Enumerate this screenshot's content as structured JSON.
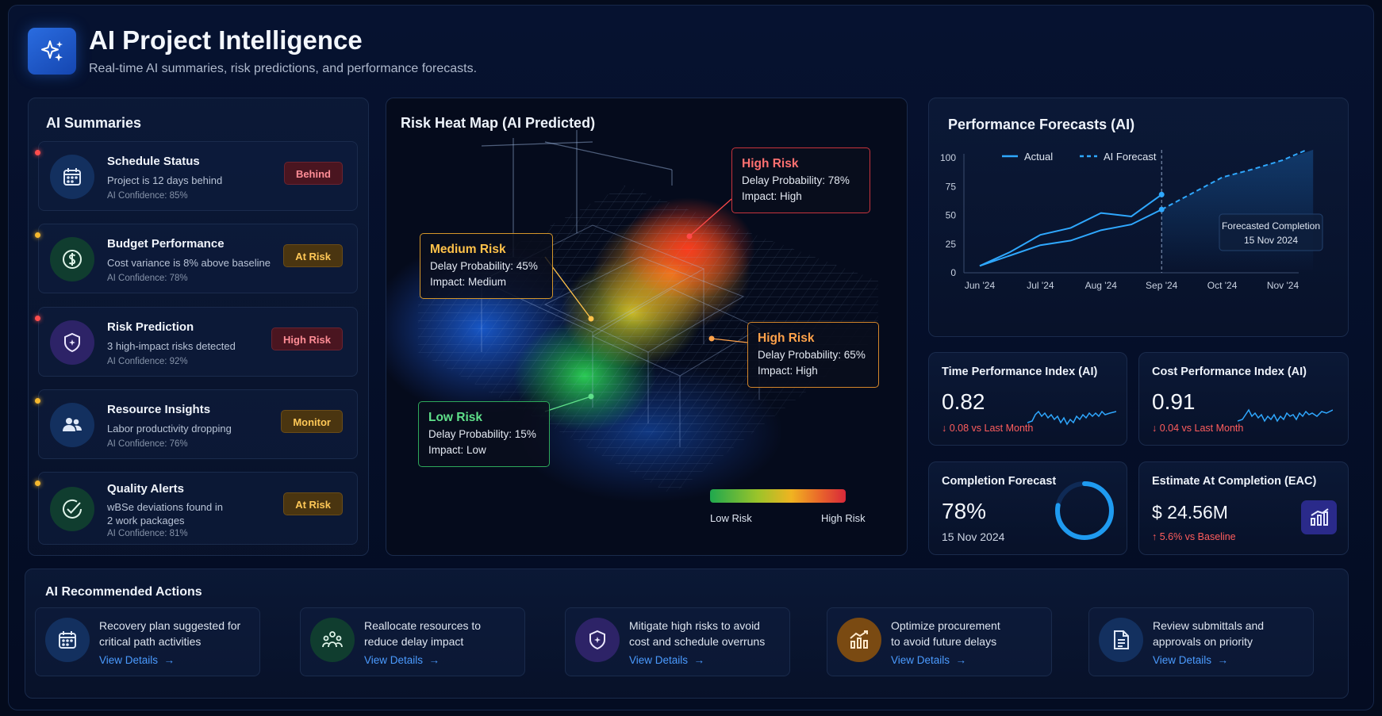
{
  "header": {
    "title": "AI Project Intelligence",
    "subtitle": "Real-time AI summaries, risk predictions, and performance forecasts."
  },
  "summaries": {
    "title": "AI Summaries",
    "items": [
      {
        "title": "Schedule Status",
        "desc": "Project is 12 days behind",
        "confidence": "AI Confidence: 85%",
        "badge": "Behind",
        "icon": "calendar-icon",
        "dot_color": "#ff4d4d"
      },
      {
        "title": "Budget Performance",
        "desc": "Cost variance is 8% above baseline",
        "confidence": "AI Confidence: 78%",
        "badge": "At Risk",
        "icon": "dollar-icon",
        "dot_color": "#f5b82e"
      },
      {
        "title": "Risk Prediction",
        "desc": "3 high-impact risks detected",
        "confidence": "AI Confidence: 92%",
        "badge": "High Risk",
        "icon": "shield-icon",
        "dot_color": "#ff4d4d"
      },
      {
        "title": "Resource Insights",
        "desc": "Labor productivity dropping",
        "confidence": "AI Confidence: 76%",
        "badge": "Monitor",
        "icon": "people-icon",
        "dot_color": "#f5b82e"
      },
      {
        "title": "Quality Alerts",
        "desc": "wBSe deviations found in",
        "desc2": "2 work packages",
        "confidence": "AI Confidence: 81%",
        "badge": "At Risk",
        "icon": "check-circle-icon",
        "dot_color": "#f5b82e"
      }
    ]
  },
  "heatmap": {
    "title": "Risk Heat Map (AI Predicted)",
    "boxes": [
      {
        "title": "High Risk",
        "line1": "Delay Probability: 78%",
        "line2": "Impact: High",
        "color": "#ff7070"
      },
      {
        "title": "Medium Risk",
        "line1": "Delay Probability: 45%",
        "line2": "Impact: Medium",
        "color": "#ffc24a"
      },
      {
        "title": "High Risk",
        "line1": "Delay Probability: 65%",
        "line2": "Impact: High",
        "color": "#ffa24a"
      },
      {
        "title": "Low Risk",
        "line1": "Delay Probability: 15%",
        "line2": "Impact: Low",
        "color": "#5fe08a"
      }
    ],
    "legend_low": "Low Risk",
    "legend_high": "High Risk"
  },
  "forecast": {
    "title": "Performance Forecasts (AI)",
    "annotation_line1": "Forecasted Completion",
    "annotation_line2": "15 Nov 2024"
  },
  "chart_data": {
    "type": "line",
    "x": [
      "Jun '24",
      "Jul '24",
      "Aug '24",
      "Sep '24",
      "Oct '24",
      "Nov '24"
    ],
    "ylim": [
      0,
      100
    ],
    "yticks": [
      0,
      25,
      50,
      75,
      100
    ],
    "legend": [
      "Actual",
      "AI Forecast"
    ],
    "series": [
      {
        "name": "Actual",
        "x": [
          0,
          0.5,
          1,
          1.5,
          2,
          2.5,
          3
        ],
        "values": [
          6,
          18,
          33,
          39,
          52,
          49,
          68
        ]
      },
      {
        "name": "Actual",
        "x": [
          0,
          0.5,
          1,
          1.5,
          2,
          2.5,
          3
        ],
        "values": [
          6,
          15,
          24,
          28,
          37,
          42,
          55
        ]
      },
      {
        "name": "AI Forecast",
        "x": [
          3,
          3.5,
          4,
          4.5,
          5,
          5.5
        ],
        "values": [
          55,
          69,
          83,
          90,
          98,
          107
        ]
      }
    ],
    "line_color": "#2fa8ff"
  },
  "kpis": {
    "tpi": {
      "title": "Time Performance Index (AI)",
      "value": "0.82",
      "delta": "↓ 0.08 vs Last Month"
    },
    "cpi": {
      "title": "Cost Performance Index (AI)",
      "value": "0.91",
      "delta": "↓ 0.04 vs Last Month"
    },
    "completion": {
      "title": "Completion Forecast",
      "value": "78%",
      "date": "15 Nov 2024",
      "progress": 78
    },
    "eac": {
      "title": "Estimate At Completion (EAC)",
      "value": "$ 24.56M",
      "delta": "↑ 5.6% vs Baseline"
    }
  },
  "actions": {
    "title": "AI Recommended Actions",
    "link_label": "View Details",
    "items": [
      {
        "line1": "Recovery plan suggested for",
        "line2": "critical path activities",
        "icon": "calendar-icon"
      },
      {
        "line1": "Reallocate resources to",
        "line2": "reduce delay impact",
        "icon": "team-icon"
      },
      {
        "line1": "Mitigate high risks to avoid",
        "line2": "cost and schedule overruns",
        "icon": "shield-icon"
      },
      {
        "line1": "Optimize procurement",
        "line2": "to avoid future delays",
        "icon": "chart-up-icon"
      },
      {
        "line1": "Review submittals and",
        "line2": "approvals on priority",
        "icon": "document-icon"
      }
    ]
  }
}
